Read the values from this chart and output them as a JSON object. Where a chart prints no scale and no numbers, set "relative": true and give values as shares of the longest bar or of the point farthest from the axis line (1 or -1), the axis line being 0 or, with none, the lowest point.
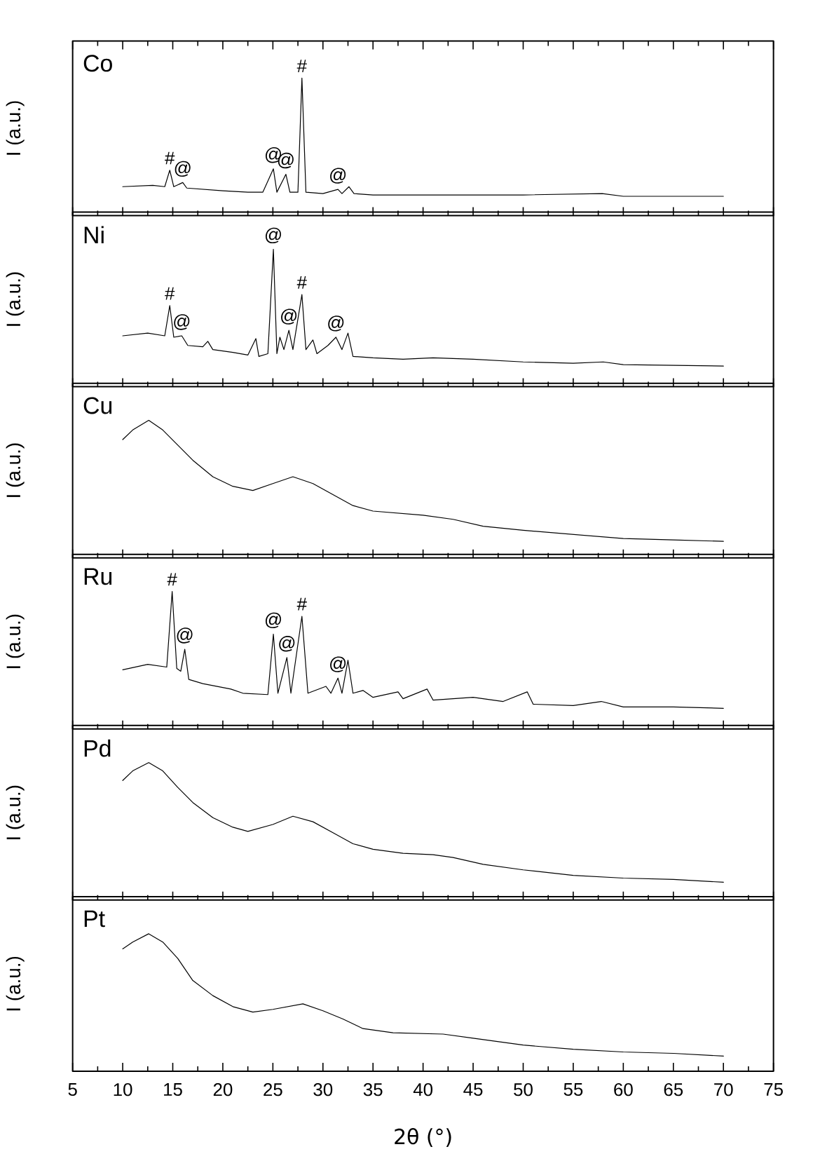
{
  "chart_data": [
    {
      "type": "line",
      "title": "Co",
      "ylabel": "I (a.u.)",
      "relative": true,
      "xlim": [
        5,
        75
      ],
      "xticks": [
        5,
        10,
        15,
        20,
        25,
        30,
        35,
        40,
        45,
        50,
        55,
        60,
        65,
        70,
        75
      ],
      "tick_labels": false,
      "x": [
        10,
        13,
        14.2,
        14.7,
        15.1,
        16,
        16.4,
        20,
        22.5,
        24,
        25.05,
        25.4,
        26.3,
        26.7,
        27.5,
        27.9,
        28.3,
        30,
        31.5,
        31.9,
        32.6,
        33.1,
        35,
        40,
        50,
        57.9,
        60,
        70
      ],
      "series": [
        {
          "color": "#000000",
          "values": [
            0.21,
            0.22,
            0.21,
            0.33,
            0.21,
            0.24,
            0.2,
            0.18,
            0.17,
            0.17,
            0.34,
            0.17,
            0.3,
            0.17,
            0.17,
            1,
            0.17,
            0.16,
            0.19,
            0.16,
            0.21,
            0.16,
            0.15,
            0.15,
            0.15,
            0.16,
            0.14,
            0.14
          ]
        }
      ],
      "annotations": [
        {
          "text": "#",
          "x": 14.7,
          "y": 0.33
        },
        {
          "text": "@",
          "x": 16,
          "y": 0.24
        },
        {
          "text": "@",
          "x": 25.05,
          "y": 0.34
        },
        {
          "text": "@",
          "x": 26.3,
          "y": 0.3
        },
        {
          "text": "#",
          "x": 27.9,
          "y": 1
        },
        {
          "text": "@",
          "x": 31.5,
          "y": 0.19
        }
      ]
    },
    {
      "type": "line",
      "title": "Ni",
      "ylabel": "I (a.u.)",
      "relative": true,
      "xlim": [
        5,
        75
      ],
      "xticks": [
        5,
        10,
        15,
        20,
        25,
        30,
        35,
        40,
        45,
        50,
        55,
        60,
        65,
        70,
        75
      ],
      "tick_labels": false,
      "x": [
        10,
        12.5,
        14.2,
        14.7,
        15.1,
        15.9,
        16.5,
        18,
        18.5,
        19,
        21,
        22.5,
        23.3,
        23.6,
        24.5,
        25.05,
        25.4,
        25.7,
        26.1,
        26.6,
        27,
        27.9,
        28.3,
        29,
        29.4,
        30.5,
        31.3,
        31.9,
        32.5,
        33,
        35,
        38,
        41,
        45,
        50,
        55,
        58,
        60,
        70
      ],
      "series": [
        {
          "color": "#000000",
          "values": [
            0.37,
            0.39,
            0.37,
            0.59,
            0.36,
            0.37,
            0.3,
            0.29,
            0.33,
            0.27,
            0.25,
            0.23,
            0.35,
            0.22,
            0.24,
            1,
            0.24,
            0.36,
            0.27,
            0.41,
            0.27,
            0.67,
            0.27,
            0.34,
            0.24,
            0.3,
            0.36,
            0.27,
            0.39,
            0.22,
            0.21,
            0.2,
            0.21,
            0.2,
            0.18,
            0.17,
            0.18,
            0.16,
            0.15
          ]
        }
      ],
      "annotations": [
        {
          "text": "#",
          "x": 14.7,
          "y": 0.59
        },
        {
          "text": "@",
          "x": 15.9,
          "y": 0.37
        },
        {
          "text": "@",
          "x": 25.05,
          "y": 1
        },
        {
          "text": "@",
          "x": 26.6,
          "y": 0.41
        },
        {
          "text": "#",
          "x": 27.9,
          "y": 0.67
        },
        {
          "text": "@",
          "x": 31.3,
          "y": 0.36
        }
      ]
    },
    {
      "type": "line",
      "title": "Cu",
      "ylabel": "I (a.u.)",
      "relative": true,
      "xlim": [
        5,
        75
      ],
      "xticks": [
        5,
        10,
        15,
        20,
        25,
        30,
        35,
        40,
        45,
        50,
        55,
        60,
        65,
        70,
        75
      ],
      "tick_labels": false,
      "x": [
        10,
        11,
        12.6,
        14,
        15.5,
        17,
        19,
        21,
        23,
        25,
        27,
        29,
        31,
        33,
        35,
        40,
        43,
        46,
        50,
        55,
        60,
        65,
        70
      ],
      "series": [
        {
          "color": "#000000",
          "values": [
            0.86,
            0.93,
            1,
            0.93,
            0.82,
            0.71,
            0.59,
            0.52,
            0.49,
            0.54,
            0.59,
            0.54,
            0.46,
            0.38,
            0.34,
            0.31,
            0.28,
            0.23,
            0.2,
            0.17,
            0.14,
            0.13,
            0.12
          ]
        }
      ]
    },
    {
      "type": "line",
      "title": "Ru",
      "ylabel": "I (a.u.)",
      "relative": true,
      "xlim": [
        5,
        75
      ],
      "xticks": [
        5,
        10,
        15,
        20,
        25,
        30,
        35,
        40,
        45,
        50,
        55,
        60,
        65,
        70,
        75
      ],
      "tick_labels": false,
      "x": [
        10,
        12.5,
        14.4,
        14.94,
        15.4,
        15.8,
        16.2,
        16.6,
        18,
        20.8,
        22,
        24.5,
        25.05,
        25.5,
        26.4,
        26.8,
        27.9,
        28.5,
        30.3,
        30.8,
        31.5,
        31.9,
        32.5,
        33,
        34,
        35,
        37.5,
        38,
        40.4,
        41,
        45,
        48,
        50.4,
        51,
        55,
        57.8,
        60,
        65,
        70
      ],
      "series": [
        {
          "color": "#000000",
          "values": [
            0.43,
            0.47,
            0.45,
            1,
            0.44,
            0.42,
            0.58,
            0.36,
            0.33,
            0.29,
            0.26,
            0.25,
            0.69,
            0.26,
            0.52,
            0.26,
            0.82,
            0.26,
            0.31,
            0.26,
            0.37,
            0.26,
            0.5,
            0.26,
            0.28,
            0.23,
            0.27,
            0.22,
            0.29,
            0.21,
            0.23,
            0.2,
            0.27,
            0.18,
            0.17,
            0.2,
            0.16,
            0.16,
            0.15
          ]
        }
      ],
      "annotations": [
        {
          "text": "#",
          "x": 14.94,
          "y": 1
        },
        {
          "text": "@",
          "x": 16.2,
          "y": 0.58
        },
        {
          "text": "@",
          "x": 25.05,
          "y": 0.69
        },
        {
          "text": "@",
          "x": 26.4,
          "y": 0.52
        },
        {
          "text": "#",
          "x": 27.9,
          "y": 0.82
        },
        {
          "text": "@",
          "x": 31.5,
          "y": 0.37
        }
      ]
    },
    {
      "type": "line",
      "title": "Pd",
      "ylabel": "I (a.u.)",
      "relative": true,
      "xlim": [
        5,
        75
      ],
      "xticks": [
        5,
        10,
        15,
        20,
        25,
        30,
        35,
        40,
        45,
        50,
        55,
        60,
        65,
        70,
        75
      ],
      "tick_labels": false,
      "x": [
        10,
        11,
        12.6,
        14,
        15.5,
        17,
        19,
        21,
        22.5,
        25,
        27,
        29,
        31,
        33,
        35,
        38,
        41,
        43,
        46,
        50,
        55,
        60,
        65,
        70
      ],
      "series": [
        {
          "color": "#000000",
          "values": [
            0.87,
            0.94,
            1,
            0.94,
            0.82,
            0.71,
            0.6,
            0.53,
            0.5,
            0.55,
            0.61,
            0.57,
            0.49,
            0.41,
            0.37,
            0.34,
            0.33,
            0.31,
            0.26,
            0.22,
            0.18,
            0.16,
            0.15,
            0.13
          ]
        }
      ]
    },
    {
      "type": "line",
      "title": "Pt",
      "xlabel": "2θ (°)",
      "ylabel": "I (a.u.)",
      "relative": true,
      "xlim": [
        5,
        75
      ],
      "xticks": [
        5,
        10,
        15,
        20,
        25,
        30,
        35,
        40,
        45,
        50,
        55,
        60,
        65,
        70,
        75
      ],
      "tick_labels": "x",
      "x": [
        10,
        11,
        12.6,
        14,
        15.5,
        17,
        19,
        21,
        23,
        25,
        28,
        30,
        32,
        34,
        37,
        42,
        45,
        50,
        55,
        60,
        65,
        70
      ],
      "series": [
        {
          "color": "#000000",
          "values": [
            0.89,
            0.94,
            1,
            0.94,
            0.82,
            0.66,
            0.55,
            0.47,
            0.43,
            0.45,
            0.49,
            0.44,
            0.38,
            0.31,
            0.28,
            0.27,
            0.24,
            0.19,
            0.16,
            0.14,
            0.13,
            0.11
          ]
        }
      ]
    }
  ]
}
